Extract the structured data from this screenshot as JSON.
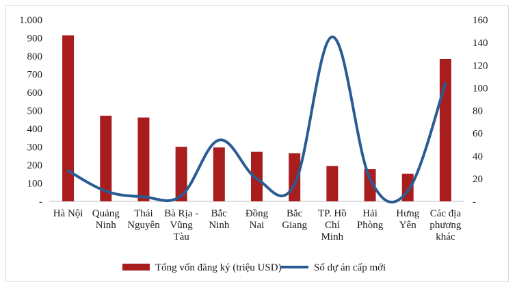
{
  "chart_data": {
    "type": "bar",
    "categories": [
      [
        "Hà Nội"
      ],
      [
        "Quảng",
        "Ninh"
      ],
      [
        "Thái",
        "Nguyên"
      ],
      [
        "Bà Rịa -",
        "Vũng",
        "Tàu"
      ],
      [
        "Bắc",
        "Ninh"
      ],
      [
        "Đồng",
        "Nai"
      ],
      [
        "Bắc",
        "Giang"
      ],
      [
        "TP. Hồ",
        "Chí",
        "Minh"
      ],
      [
        "Hải",
        "Phòng"
      ],
      [
        "Hưng",
        "Yên"
      ],
      [
        "Các địa",
        "phương",
        "khác"
      ]
    ],
    "series": [
      {
        "name": "Tổng vốn đăng ký (triệu USD)",
        "type": "bar",
        "axis": "left",
        "color": "#a81e1e",
        "values": [
          915,
          472,
          462,
          300,
          297,
          273,
          265,
          195,
          177,
          152,
          785
        ]
      },
      {
        "name": "Số dự án cấp mới",
        "type": "line",
        "axis": "right",
        "color": "#2a5b92",
        "values": [
          27,
          9,
          4,
          5,
          54,
          20,
          15,
          145,
          20,
          9,
          104
        ]
      }
    ],
    "y_left": {
      "min": 0,
      "max": 1000,
      "ticks": [
        0,
        100,
        200,
        300,
        400,
        500,
        600,
        700,
        800,
        900,
        1000
      ],
      "tick_labels": [
        "-",
        "100",
        "200",
        "300",
        "400",
        "500",
        "600",
        "700",
        "800",
        "900",
        "1.000"
      ]
    },
    "y_right": {
      "min": 0,
      "max": 160,
      "ticks": [
        0,
        20,
        40,
        60,
        80,
        100,
        120,
        140,
        160
      ],
      "tick_labels": [
        "-",
        "20",
        "40",
        "60",
        "80",
        "100",
        "120",
        "140",
        "160"
      ]
    },
    "grid": false,
    "legend_position": "bottom"
  }
}
